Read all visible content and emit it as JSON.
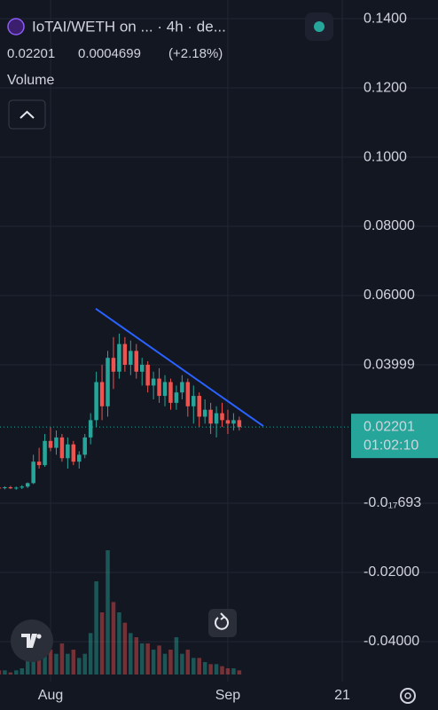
{
  "chart_data": {
    "type": "candlestick",
    "title": "IoTAI/WETH on ...  · 4h · de...",
    "last_price": 0.02201,
    "change": 0.0004699,
    "change_percent_text": "(+2.18%)",
    "indicator": "Volume",
    "countdown": "01:02:10",
    "up_color": "#26a69a",
    "down_color": "#ef5350",
    "x": [
      -9,
      -8,
      -7,
      -6,
      -5,
      -4,
      -3,
      -2,
      -1,
      0,
      1,
      2,
      3,
      4,
      5,
      6,
      7,
      8,
      9,
      10,
      11,
      12,
      13,
      14,
      15,
      16,
      17,
      18,
      19,
      20,
      21,
      22,
      23,
      24,
      25,
      26,
      27,
      28,
      29,
      30,
      31,
      32,
      33
    ],
    "open": [
      0.0045,
      0.0044,
      0.0046,
      0.0043,
      0.0045,
      0.0048,
      0.0058,
      0.012,
      0.011,
      0.018,
      0.016,
      0.019,
      0.013,
      0.017,
      0.012,
      0.014,
      0.019,
      0.024,
      0.035,
      0.028,
      0.042,
      0.038,
      0.046,
      0.04,
      0.044,
      0.038,
      0.04,
      0.034,
      0.036,
      0.031,
      0.035,
      0.029,
      0.032,
      0.035,
      0.028,
      0.031,
      0.025,
      0.027,
      0.023,
      0.026,
      0.024,
      0.023,
      0.024
    ],
    "high": [
      0.005,
      0.0049,
      0.005,
      0.0048,
      0.0052,
      0.006,
      0.014,
      0.016,
      0.02,
      0.022,
      0.021,
      0.02,
      0.019,
      0.018,
      0.015,
      0.02,
      0.026,
      0.038,
      0.04,
      0.044,
      0.048,
      0.049,
      0.048,
      0.047,
      0.046,
      0.042,
      0.041,
      0.038,
      0.039,
      0.037,
      0.036,
      0.034,
      0.037,
      0.036,
      0.034,
      0.032,
      0.03,
      0.029,
      0.028,
      0.029,
      0.027,
      0.026,
      0.025
    ],
    "low": [
      0.004,
      0.004,
      0.0041,
      0.0039,
      0.0041,
      0.0044,
      0.0055,
      0.01,
      0.0105,
      0.015,
      0.014,
      0.012,
      0.01,
      0.011,
      0.01,
      0.013,
      0.017,
      0.022,
      0.024,
      0.025,
      0.033,
      0.036,
      0.038,
      0.037,
      0.036,
      0.034,
      0.032,
      0.03,
      0.029,
      0.028,
      0.027,
      0.027,
      0.03,
      0.025,
      0.023,
      0.022,
      0.023,
      0.02,
      0.019,
      0.022,
      0.02,
      0.021,
      0.021
    ],
    "close": [
      0.0044,
      0.0046,
      0.0043,
      0.0045,
      0.0048,
      0.0058,
      0.012,
      0.011,
      0.018,
      0.016,
      0.019,
      0.013,
      0.017,
      0.012,
      0.014,
      0.019,
      0.024,
      0.035,
      0.028,
      0.042,
      0.038,
      0.046,
      0.04,
      0.044,
      0.038,
      0.04,
      0.034,
      0.036,
      0.031,
      0.035,
      0.029,
      0.032,
      0.035,
      0.028,
      0.031,
      0.025,
      0.027,
      0.023,
      0.026,
      0.024,
      0.023,
      0.024,
      0.022
    ],
    "volume": [
      2,
      2,
      1,
      2,
      3,
      8,
      25,
      15,
      20,
      12,
      10,
      15,
      10,
      12,
      8,
      10,
      20,
      45,
      30,
      60,
      35,
      30,
      25,
      20,
      18,
      15,
      15,
      12,
      14,
      10,
      12,
      18,
      10,
      12,
      8,
      8,
      6,
      5,
      5,
      4,
      3,
      3,
      2
    ],
    "trendline": {
      "x": [
        7.9,
        37.2
      ],
      "values": [
        0.0562,
        0.0223
      ],
      "color": "#2962ff"
    },
    "xlim": [
      -8.84,
      52.4
    ],
    "xticks": [
      {
        "value": 0,
        "label": "Aug"
      },
      {
        "value": 31,
        "label": "Sep"
      },
      {
        "value": 51,
        "label": "21"
      }
    ],
    "ylim": [
      -0.0495,
      0.1454
    ],
    "yticks": [
      {
        "value": 0.14,
        "label": "0.1400"
      },
      {
        "value": 0.12,
        "label": "0.1200"
      },
      {
        "value": 0.1,
        "label": "0.1000"
      },
      {
        "value": 0.08,
        "label": "0.08000"
      },
      {
        "value": 0.06,
        "label": "0.06000"
      },
      0.03999,
      {
        "value": -6.93e-19,
        "label": "-0.0₁₇693"
      },
      {
        "value": -0.02,
        "label": "-0.02000"
      },
      {
        "value": -0.04,
        "label": "-0.04000"
      }
    ],
    "grid": true
  }
}
